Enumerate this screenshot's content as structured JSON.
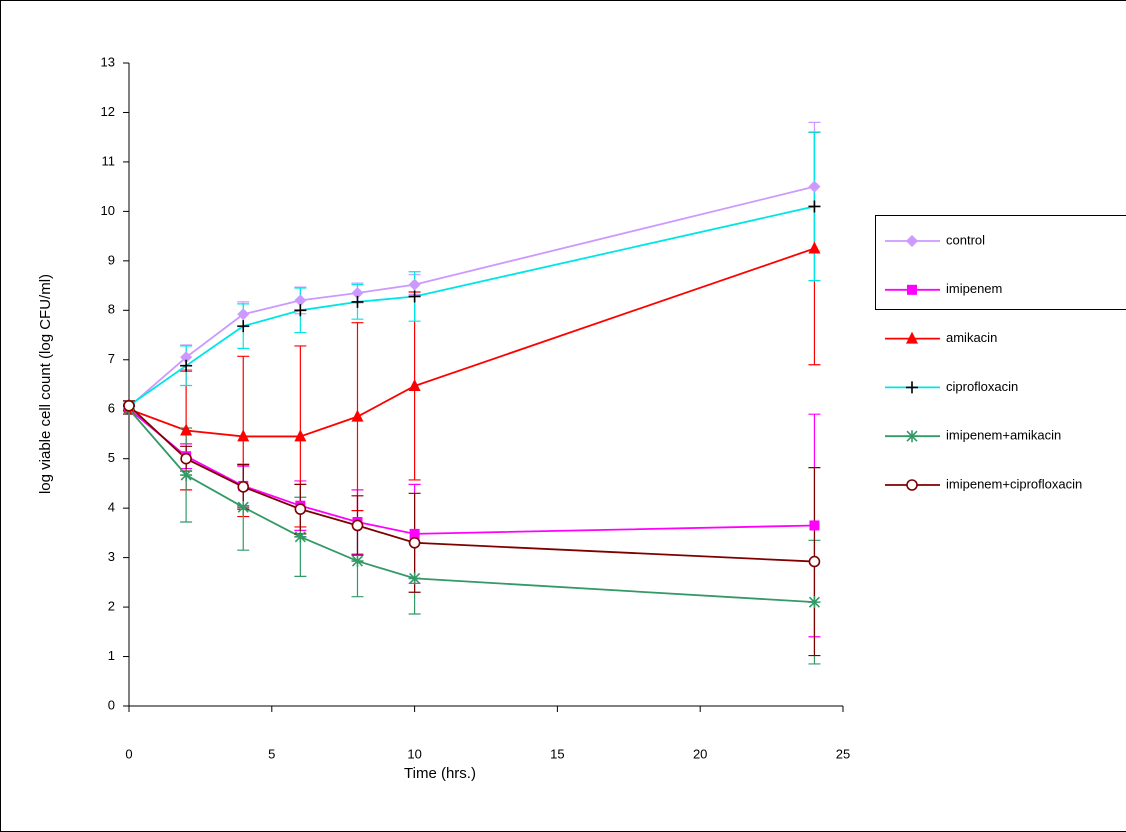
{
  "chart_data": {
    "type": "line",
    "x_label": "Time (hrs.)",
    "y_label": "log viable cell count (log CFU/ml)",
    "x": [
      0,
      2,
      4,
      6,
      8,
      10,
      24
    ],
    "xlim": [
      0,
      25
    ],
    "xticks": [
      0,
      5,
      10,
      15,
      20,
      25
    ],
    "ylim": [
      0,
      13
    ],
    "yticks": [
      0,
      1,
      2,
      3,
      4,
      5,
      6,
      7,
      8,
      9,
      10,
      11,
      12,
      13
    ],
    "legend": "right",
    "series": [
      {
        "name": "control",
        "color": "#cc99ff",
        "marker": "diamond",
        "values": [
          6.05,
          7.05,
          7.92,
          8.2,
          8.35,
          8.52,
          10.5
        ],
        "errors": [
          0.1,
          0.25,
          0.25,
          0.27,
          0.2,
          0.2,
          1.3
        ]
      },
      {
        "name": "imipenem",
        "color": "#ff00ff",
        "marker": "square",
        "values": [
          6.0,
          5.05,
          4.45,
          4.05,
          3.72,
          3.48,
          3.65
        ],
        "errors": [
          0.1,
          0.25,
          0.4,
          0.5,
          0.65,
          1.0,
          2.25
        ]
      },
      {
        "name": "amikacin",
        "color": "#ff0000",
        "marker": "triangle",
        "values": [
          6.0,
          5.57,
          5.45,
          5.45,
          5.85,
          6.47,
          9.25
        ],
        "errors": [
          0.1,
          1.2,
          1.62,
          1.83,
          1.9,
          1.9,
          2.35
        ]
      },
      {
        "name": "ciprofloxacin",
        "color": "#00e5e5",
        "marker": "plus",
        "values": [
          6.07,
          6.88,
          7.68,
          8.0,
          8.17,
          8.28,
          10.1
        ],
        "errors": [
          0.1,
          0.4,
          0.45,
          0.45,
          0.35,
          0.5,
          1.5
        ]
      },
      {
        "name": "imipenem+amikacin",
        "color": "#339966",
        "marker": "star",
        "values": [
          6.0,
          4.67,
          4.02,
          3.42,
          2.93,
          2.58,
          2.1
        ],
        "errors": [
          0.1,
          0.95,
          0.87,
          0.8,
          0.72,
          0.72,
          1.25
        ]
      },
      {
        "name": "imipenem+ciprofloxacin",
        "color": "#800000",
        "marker": "circle",
        "values": [
          6.07,
          5.0,
          4.43,
          3.98,
          3.65,
          3.3,
          2.92
        ],
        "errors": [
          0.1,
          0.25,
          0.45,
          0.5,
          0.6,
          1.0,
          1.9
        ]
      }
    ]
  }
}
